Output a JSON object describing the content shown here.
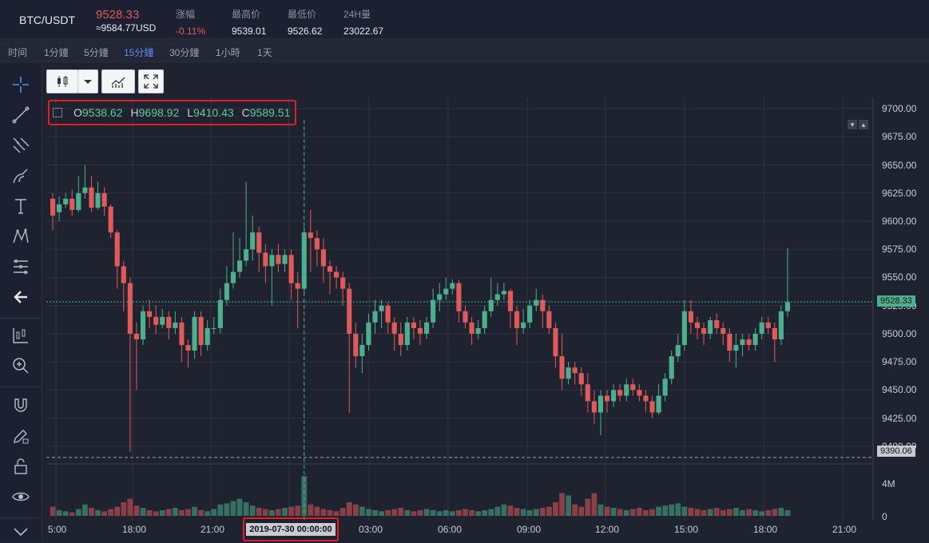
{
  "ticker": {
    "pair": "BTC/USDT",
    "price": "9528.33",
    "price_usd": "≈9584.77USD",
    "stats": [
      {
        "label": "涨幅",
        "value": "-0.11%"
      },
      {
        "label": "最高价",
        "value": "9539.01"
      },
      {
        "label": "最低价",
        "value": "9526.62"
      },
      {
        "label": "24H量",
        "value": "23022.67"
      }
    ]
  },
  "timeframes": [
    "时间",
    "1分鐘",
    "5分鐘",
    "15分鐘",
    "30分鐘",
    "1小時",
    "1天"
  ],
  "active_timeframe": "15分鐘",
  "ohlc": {
    "o_label": "O",
    "o": "9538.62",
    "h_label": "H",
    "h": "9698.92",
    "l_label": "L",
    "l": "9410.43",
    "c_label": "C",
    "c": "9589.51"
  },
  "y_ticks": [
    "9700.00",
    "9675.00",
    "9650.00",
    "9625.00",
    "9600.00",
    "9575.00",
    "9550.00",
    "9525.00",
    "9500.00",
    "9475.00",
    "9450.00",
    "9425.00",
    "9400.00"
  ],
  "x_ticks": [
    "5:00",
    "18:00",
    "21:00",
    "03:00",
    "06:00",
    "09:00",
    "12:00",
    "15:00",
    "18:00",
    "21:00"
  ],
  "crosshair_date": "2019-07-30 00:00:00",
  "last_price_tag": "9528.33",
  "low_line_tag": "9390.06",
  "volume_ticks": [
    "4M",
    "0"
  ],
  "colors": {
    "up": "#4caf8e",
    "down": "#e05a5a",
    "accent": "#5b8ef0"
  },
  "chart_data": {
    "type": "candlestick",
    "ylim": [
      9385,
      9710
    ],
    "candles": [
      [
        9620,
        9605,
        9625,
        9592
      ],
      [
        9608,
        9615,
        9622,
        9600
      ],
      [
        9615,
        9620,
        9625,
        9612
      ],
      [
        9620,
        9610,
        9628,
        9605
      ],
      [
        9610,
        9625,
        9640,
        9608
      ],
      [
        9625,
        9630,
        9650,
        9620
      ],
      [
        9630,
        9612,
        9640,
        9608
      ],
      [
        9612,
        9625,
        9635,
        9610
      ],
      [
        9625,
        9613,
        9630,
        9605
      ],
      [
        9613,
        9590,
        9615,
        9585
      ],
      [
        9590,
        9560,
        9592,
        9540
      ],
      [
        9560,
        9545,
        9565,
        9520
      ],
      [
        9545,
        9500,
        9550,
        9395
      ],
      [
        9500,
        9495,
        9510,
        9450
      ],
      [
        9495,
        9520,
        9525,
        9490
      ],
      [
        9520,
        9515,
        9530,
        9505
      ],
      [
        9515,
        9508,
        9525,
        9500
      ],
      [
        9508,
        9515,
        9522,
        9505
      ],
      [
        9515,
        9505,
        9520,
        9495
      ],
      [
        9505,
        9510,
        9520,
        9500
      ],
      [
        9510,
        9490,
        9515,
        9475
      ],
      [
        9490,
        9485,
        9495,
        9470
      ],
      [
        9485,
        9515,
        9520,
        9478
      ],
      [
        9515,
        9490,
        9520,
        9480
      ],
      [
        9490,
        9505,
        9512,
        9485
      ],
      [
        9505,
        9505,
        9515,
        9500
      ],
      [
        9505,
        9530,
        9540,
        9500
      ],
      [
        9530,
        9545,
        9560,
        9525
      ],
      [
        9545,
        9555,
        9590,
        9540
      ],
      [
        9555,
        9565,
        9585,
        9550
      ],
      [
        9565,
        9575,
        9635,
        9560
      ],
      [
        9575,
        9590,
        9605,
        9565
      ],
      [
        9590,
        9572,
        9595,
        9555
      ],
      [
        9572,
        9560,
        9580,
        9545
      ],
      [
        9560,
        9570,
        9575,
        9525
      ],
      [
        9570,
        9562,
        9580,
        9555
      ],
      [
        9562,
        9570,
        9575,
        9555
      ],
      [
        9570,
        9545,
        9575,
        9530
      ],
      [
        9545,
        9540,
        9555,
        9505
      ],
      [
        9540,
        9590,
        9595,
        9535
      ],
      [
        9590,
        9585,
        9610,
        9555
      ],
      [
        9585,
        9575,
        9592,
        9560
      ],
      [
        9575,
        9560,
        9585,
        9545
      ],
      [
        9560,
        9555,
        9565,
        9535
      ],
      [
        9555,
        9550,
        9560,
        9540
      ],
      [
        9550,
        9540,
        9555,
        9525
      ],
      [
        9540,
        9500,
        9545,
        9430
      ],
      [
        9500,
        9480,
        9510,
        9470
      ],
      [
        9480,
        9490,
        9500,
        9465
      ],
      [
        9490,
        9510,
        9518,
        9485
      ],
      [
        9510,
        9520,
        9530,
        9500
      ],
      [
        9520,
        9525,
        9530,
        9505
      ],
      [
        9525,
        9510,
        9528,
        9500
      ],
      [
        9510,
        9500,
        9515,
        9485
      ],
      [
        9500,
        9490,
        9510,
        9480
      ],
      [
        9490,
        9510,
        9515,
        9485
      ],
      [
        9510,
        9505,
        9515,
        9495
      ],
      [
        9505,
        9500,
        9512,
        9490
      ],
      [
        9500,
        9510,
        9515,
        9495
      ],
      [
        9510,
        9530,
        9540,
        9505
      ],
      [
        9530,
        9535,
        9545,
        9520
      ],
      [
        9535,
        9540,
        9550,
        9530
      ],
      [
        9540,
        9545,
        9548,
        9535
      ],
      [
        9545,
        9520,
        9548,
        9510
      ],
      [
        9520,
        9510,
        9525,
        9505
      ],
      [
        9510,
        9500,
        9515,
        9490
      ],
      [
        9500,
        9505,
        9512,
        9495
      ],
      [
        9505,
        9520,
        9525,
        9500
      ],
      [
        9520,
        9530,
        9550,
        9515
      ],
      [
        9530,
        9535,
        9545,
        9525
      ],
      [
        9535,
        9538,
        9545,
        9530
      ],
      [
        9538,
        9520,
        9540,
        9505
      ],
      [
        9520,
        9505,
        9525,
        9490
      ],
      [
        9505,
        9510,
        9522,
        9500
      ],
      [
        9510,
        9525,
        9530,
        9505
      ],
      [
        9525,
        9530,
        9540,
        9520
      ],
      [
        9530,
        9520,
        9535,
        9505
      ],
      [
        9520,
        9505,
        9525,
        9500
      ],
      [
        9505,
        9480,
        9510,
        9470
      ],
      [
        9480,
        9460,
        9500,
        9450
      ],
      [
        9460,
        9470,
        9475,
        9455
      ],
      [
        9470,
        9465,
        9475,
        9455
      ],
      [
        9465,
        9455,
        9470,
        9445
      ],
      [
        9455,
        9440,
        9465,
        9430
      ],
      [
        9440,
        9430,
        9450,
        9420
      ],
      [
        9430,
        9445,
        9450,
        9410
      ],
      [
        9445,
        9440,
        9450,
        9430
      ],
      [
        9440,
        9450,
        9455,
        9435
      ],
      [
        9450,
        9445,
        9455,
        9440
      ],
      [
        9445,
        9455,
        9460,
        9440
      ],
      [
        9455,
        9450,
        9460,
        9445
      ],
      [
        9450,
        9445,
        9455,
        9440
      ],
      [
        9445,
        9440,
        9450,
        9430
      ],
      [
        9440,
        9430,
        9445,
        9425
      ],
      [
        9430,
        9445,
        9455,
        9428
      ],
      [
        9445,
        9460,
        9465,
        9440
      ],
      [
        9460,
        9480,
        9485,
        9455
      ],
      [
        9480,
        9490,
        9500,
        9475
      ],
      [
        9490,
        9520,
        9530,
        9485
      ],
      [
        9520,
        9510,
        9530,
        9500
      ],
      [
        9510,
        9505,
        9515,
        9495
      ],
      [
        9505,
        9500,
        9510,
        9490
      ],
      [
        9500,
        9512,
        9515,
        9495
      ],
      [
        9512,
        9505,
        9518,
        9500
      ],
      [
        9505,
        9500,
        9510,
        9490
      ],
      [
        9500,
        9485,
        9505,
        9475
      ],
      [
        9485,
        9490,
        9500,
        9470
      ],
      [
        9490,
        9495,
        9500,
        9480
      ],
      [
        9495,
        9490,
        9500,
        9485
      ],
      [
        9490,
        9500,
        9505,
        9485
      ],
      [
        9500,
        9510,
        9515,
        9495
      ],
      [
        9510,
        9505,
        9515,
        9500
      ],
      [
        9505,
        9495,
        9510,
        9475
      ],
      [
        9495,
        9520,
        9525,
        9490
      ],
      [
        9520,
        9528,
        9576,
        9515
      ]
    ],
    "volumes": [
      0.8,
      0.5,
      0.4,
      0.3,
      0.6,
      1.0,
      0.7,
      0.5,
      0.4,
      0.6,
      0.8,
      1.2,
      1.5,
      0.9,
      0.7,
      0.5,
      0.4,
      0.5,
      0.6,
      0.7,
      0.5,
      0.6,
      0.8,
      0.5,
      0.4,
      0.6,
      1.0,
      1.1,
      1.3,
      1.5,
      1.2,
      0.9,
      0.7,
      0.6,
      0.5,
      0.6,
      0.7,
      0.8,
      0.9,
      3.5,
      1.0,
      0.8,
      0.6,
      0.5,
      0.4,
      0.7,
      1.2,
      1.0,
      0.8,
      0.6,
      0.5,
      0.4,
      0.5,
      0.6,
      0.7,
      0.5,
      0.4,
      0.5,
      0.6,
      0.5,
      0.4,
      0.5,
      0.4,
      0.5,
      0.6,
      0.5,
      0.4,
      0.5,
      0.6,
      0.8,
      1.0,
      0.9,
      0.7,
      0.6,
      0.5,
      0.6,
      0.7,
      0.8,
      1.2,
      2.0,
      1.8,
      1.0,
      0.8,
      1.5,
      2.0,
      1.0,
      0.8,
      0.7,
      0.6,
      0.5,
      0.6,
      0.7,
      0.5,
      0.6,
      0.8,
      0.9,
      1.0,
      1.1,
      0.8,
      0.7,
      0.6,
      0.5,
      0.6,
      0.7,
      0.5,
      0.6,
      0.7,
      0.5,
      0.6,
      0.5,
      0.4,
      0.5,
      0.6,
      0.7,
      0.5,
      0.6,
      0.5,
      1.2
    ],
    "volume_max": 4.5,
    "crosshair_index": 39
  }
}
